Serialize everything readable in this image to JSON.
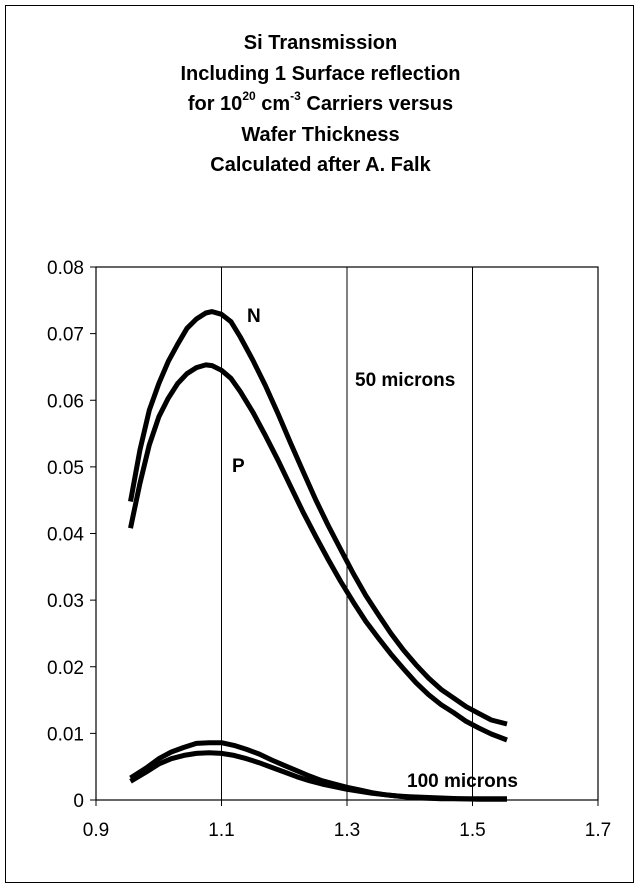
{
  "chart_data": {
    "type": "line",
    "title_lines": {
      "line1": "Si Transmission",
      "line2": "Including 1 Surface reflection",
      "line3_pre": "for 10",
      "line3_sup1": "20",
      "line3_mid": " cm",
      "line3_sup2": "-3",
      "line3_post": " Carriers versus",
      "line4": "Wafer Thickness",
      "line5": "Calculated after A. Falk"
    },
    "xlim": [
      0.9,
      1.7
    ],
    "ylim": [
      0,
      0.08
    ],
    "x_ticks": [
      "0.9",
      "1.1",
      "1.3",
      "1.5",
      "1.7"
    ],
    "y_ticks": [
      "0",
      "0.01",
      "0.02",
      "0.03",
      "0.04",
      "0.05",
      "0.06",
      "0.07",
      "0.08"
    ],
    "grid": "vertical",
    "annotations": {
      "n_label": "N",
      "p_label": "P",
      "thick50_label": "50 microns",
      "thick100_label": "100 microns"
    },
    "series": [
      {
        "x": [
          0.955,
          0.97,
          0.985,
          1.0,
          1.015,
          1.03,
          1.045,
          1.06,
          1.075,
          1.085,
          1.1,
          1.115,
          1.13,
          1.15,
          1.17,
          1.19,
          1.21,
          1.23,
          1.25,
          1.27,
          1.29,
          1.31,
          1.33,
          1.35,
          1.37,
          1.39,
          1.41,
          1.43,
          1.45,
          1.47,
          1.49,
          1.51,
          1.53,
          1.555
        ],
        "y": [
          0.0448,
          0.0525,
          0.0585,
          0.0625,
          0.0658,
          0.0684,
          0.0708,
          0.0722,
          0.0731,
          0.0733,
          0.0729,
          0.0718,
          0.0695,
          0.066,
          0.0622,
          0.058,
          0.0536,
          0.0493,
          0.0451,
          0.0412,
          0.0376,
          0.034,
          0.0307,
          0.0278,
          0.025,
          0.0225,
          0.0203,
          0.0183,
          0.0166,
          0.0153,
          0.014,
          0.013,
          0.012,
          0.0114
        ]
      },
      {
        "x": [
          0.955,
          0.97,
          0.985,
          1.0,
          1.015,
          1.03,
          1.045,
          1.06,
          1.075,
          1.085,
          1.1,
          1.115,
          1.13,
          1.15,
          1.17,
          1.19,
          1.21,
          1.23,
          1.25,
          1.27,
          1.29,
          1.31,
          1.33,
          1.35,
          1.37,
          1.39,
          1.41,
          1.43,
          1.45,
          1.47,
          1.49,
          1.51,
          1.53,
          1.555
        ],
        "y": [
          0.0408,
          0.0475,
          0.0533,
          0.0575,
          0.0603,
          0.0625,
          0.064,
          0.0649,
          0.0653,
          0.0652,
          0.0645,
          0.0633,
          0.0613,
          0.0582,
          0.0547,
          0.051,
          0.0471,
          0.0432,
          0.0396,
          0.0361,
          0.0328,
          0.0297,
          0.0268,
          0.0243,
          0.0219,
          0.0197,
          0.0176,
          0.0158,
          0.0143,
          0.0131,
          0.0118,
          0.0108,
          0.0099,
          0.009
        ]
      },
      {
        "x": [
          0.955,
          0.98,
          1.0,
          1.02,
          1.04,
          1.06,
          1.08,
          1.1,
          1.12,
          1.14,
          1.16,
          1.18,
          1.2,
          1.22,
          1.24,
          1.26,
          1.28,
          1.3,
          1.32,
          1.34,
          1.36,
          1.38,
          1.4,
          1.42,
          1.45,
          1.48,
          1.51,
          1.555
        ],
        "y": [
          0.0033,
          0.0048,
          0.0062,
          0.0072,
          0.0079,
          0.0085,
          0.0086,
          0.0086,
          0.0082,
          0.0076,
          0.0069,
          0.006,
          0.0052,
          0.0044,
          0.0036,
          0.0029,
          0.0024,
          0.0019,
          0.0015,
          0.0011,
          0.0008,
          0.0006,
          0.0005,
          0.0004,
          0.0003,
          0.0002,
          0.0002,
          0.0002
        ]
      },
      {
        "x": [
          0.955,
          0.98,
          1.0,
          1.02,
          1.04,
          1.06,
          1.08,
          1.1,
          1.12,
          1.14,
          1.16,
          1.18,
          1.2,
          1.22,
          1.24,
          1.26,
          1.28,
          1.3,
          1.32,
          1.34,
          1.36,
          1.38,
          1.4,
          1.42,
          1.45,
          1.48,
          1.51,
          1.555
        ],
        "y": [
          0.0028,
          0.0042,
          0.0054,
          0.0062,
          0.0067,
          0.007,
          0.0071,
          0.007,
          0.0067,
          0.0062,
          0.0056,
          0.0049,
          0.0042,
          0.0035,
          0.0029,
          0.0024,
          0.002,
          0.0016,
          0.0013,
          0.001,
          0.0008,
          0.0006,
          0.0004,
          0.0003,
          0.0002,
          0.0002,
          0.0001,
          0.0001
        ]
      }
    ],
    "line_color": "#000000"
  }
}
